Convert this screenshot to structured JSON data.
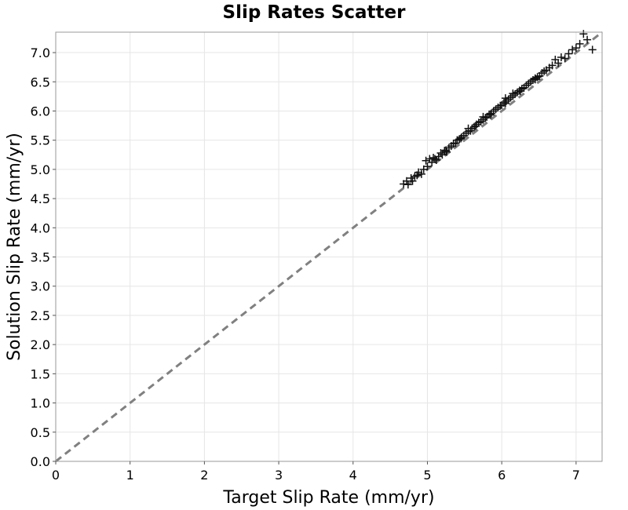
{
  "chart_data": {
    "type": "scatter",
    "title": "Slip Rates Scatter",
    "xlabel": "Target Slip Rate (mm/yr)",
    "ylabel": "Solution Slip Rate (mm/yr)",
    "xlim": [
      0,
      7.35
    ],
    "ylim": [
      0,
      7.35
    ],
    "x_ticks": [
      "0",
      "1",
      "2",
      "3",
      "4",
      "5",
      "6",
      "7"
    ],
    "y_ticks": [
      "0.0",
      "0.5",
      "1.0",
      "1.5",
      "2.0",
      "2.5",
      "3.0",
      "3.5",
      "4.0",
      "4.5",
      "5.0",
      "5.5",
      "6.0",
      "6.5",
      "7.0"
    ],
    "grid": true,
    "marker": "plus",
    "reference_line": {
      "style": "dashed",
      "color": "#808080",
      "from": [
        0,
        0
      ],
      "to": [
        7.35,
        7.35
      ]
    },
    "series": [
      {
        "points": [
          [
            4.68,
            4.75
          ],
          [
            4.72,
            4.8
          ],
          [
            4.74,
            4.74
          ],
          [
            4.78,
            4.85
          ],
          [
            4.8,
            4.8
          ],
          [
            4.83,
            4.88
          ],
          [
            4.86,
            4.9
          ],
          [
            4.88,
            4.95
          ],
          [
            4.92,
            4.92
          ],
          [
            4.95,
            5.0
          ],
          [
            4.98,
            5.15
          ],
          [
            5.0,
            5.05
          ],
          [
            5.03,
            5.18
          ],
          [
            5.06,
            5.12
          ],
          [
            5.08,
            5.2
          ],
          [
            5.12,
            5.16
          ],
          [
            5.15,
            5.22
          ],
          [
            5.18,
            5.28
          ],
          [
            5.2,
            5.25
          ],
          [
            5.23,
            5.32
          ],
          [
            5.26,
            5.3
          ],
          [
            5.29,
            5.37
          ],
          [
            5.32,
            5.4
          ],
          [
            5.35,
            5.44
          ],
          [
            5.38,
            5.45
          ],
          [
            5.4,
            5.5
          ],
          [
            5.43,
            5.52
          ],
          [
            5.46,
            5.55
          ],
          [
            5.49,
            5.58
          ],
          [
            5.52,
            5.62
          ],
          [
            5.55,
            5.65
          ],
          [
            5.58,
            5.66
          ],
          [
            5.6,
            5.7
          ],
          [
            5.63,
            5.73
          ],
          [
            5.66,
            5.77
          ],
          [
            5.69,
            5.8
          ],
          [
            5.72,
            5.82
          ],
          [
            5.75,
            5.85
          ],
          [
            5.78,
            5.88
          ],
          [
            5.8,
            5.9
          ],
          [
            5.83,
            5.94
          ],
          [
            5.86,
            5.96
          ],
          [
            5.89,
            6.0
          ],
          [
            5.92,
            6.03
          ],
          [
            5.95,
            6.06
          ],
          [
            5.98,
            6.09
          ],
          [
            6.0,
            6.1
          ],
          [
            6.03,
            6.14
          ],
          [
            6.06,
            6.17
          ],
          [
            6.09,
            6.2
          ],
          [
            6.12,
            6.23
          ],
          [
            6.15,
            6.26
          ],
          [
            6.18,
            6.29
          ],
          [
            6.21,
            6.32
          ],
          [
            6.24,
            6.35
          ],
          [
            6.27,
            6.38
          ],
          [
            6.3,
            6.4
          ],
          [
            6.33,
            6.44
          ],
          [
            6.36,
            6.47
          ],
          [
            6.39,
            6.5
          ],
          [
            6.42,
            6.53
          ],
          [
            6.45,
            6.56
          ],
          [
            6.48,
            6.58
          ],
          [
            6.51,
            6.6
          ],
          [
            6.54,
            6.65
          ],
          [
            6.57,
            6.68
          ],
          [
            6.6,
            6.7
          ],
          [
            6.64,
            6.74
          ],
          [
            6.68,
            6.78
          ],
          [
            6.72,
            6.88
          ],
          [
            6.76,
            6.82
          ],
          [
            6.8,
            6.92
          ],
          [
            6.85,
            6.9
          ],
          [
            6.9,
            6.98
          ],
          [
            6.95,
            7.05
          ],
          [
            7.0,
            7.08
          ],
          [
            7.05,
            7.15
          ],
          [
            7.1,
            7.32
          ],
          [
            7.15,
            7.22
          ],
          [
            7.22,
            7.05
          ],
          [
            5.1,
            5.18
          ],
          [
            5.25,
            5.33
          ],
          [
            5.45,
            5.53
          ],
          [
            5.65,
            5.74
          ],
          [
            5.85,
            5.93
          ],
          [
            6.05,
            6.13
          ],
          [
            6.25,
            6.34
          ],
          [
            6.45,
            6.54
          ],
          [
            6.05,
            6.22
          ],
          [
            6.15,
            6.3
          ],
          [
            5.55,
            5.7
          ],
          [
            5.75,
            5.9
          ]
        ]
      }
    ]
  }
}
